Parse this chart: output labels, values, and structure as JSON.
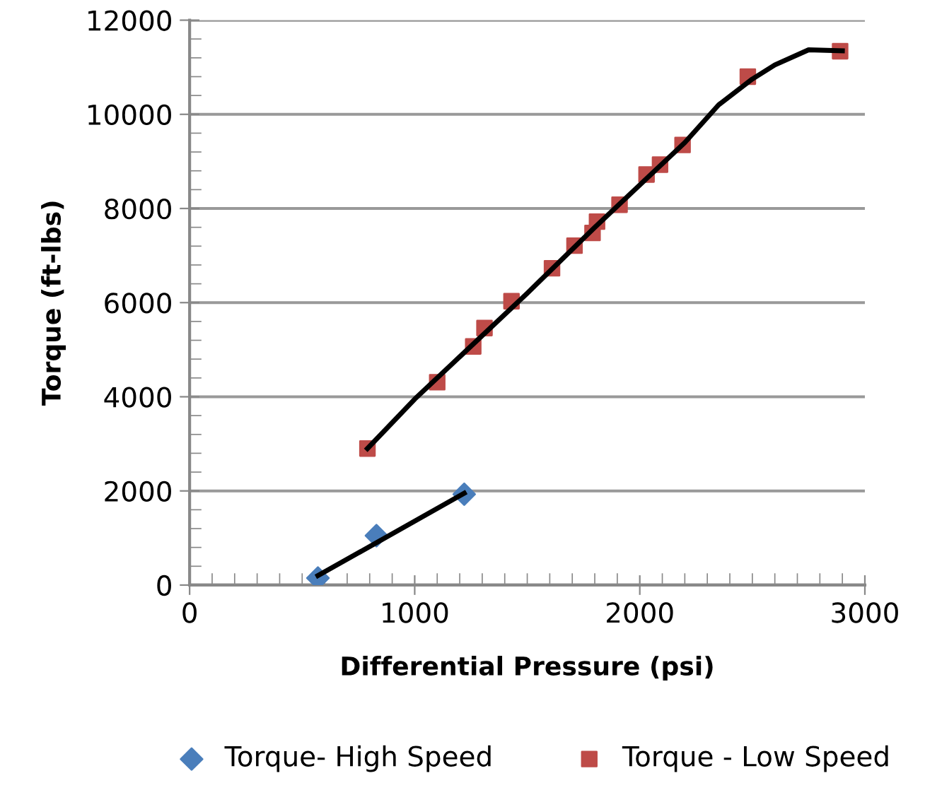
{
  "chart_data": {
    "type": "scatter",
    "xlabel": "Differential Pressure (psi)",
    "ylabel": "Torque (ft-lbs)",
    "xlim": [
      0,
      3000
    ],
    "xticks": [
      0,
      1000,
      2000,
      3000
    ],
    "ylim": [
      0,
      12000
    ],
    "yticks": [
      0,
      2000,
      4000,
      6000,
      8000,
      10000,
      12000
    ],
    "grid": "y",
    "legend": "bottom",
    "series": [
      {
        "name": "Torque- High Speed",
        "color": "#4a7ebb",
        "marker": "diamond",
        "x": [
          570,
          830,
          1220
        ],
        "values": [
          150,
          1050,
          1930
        ]
      },
      {
        "name": "Torque - Low Speed",
        "color": "#be4b48",
        "marker": "square",
        "x": [
          790,
          1100,
          1260,
          1310,
          1430,
          1610,
          1710,
          1790,
          1810,
          1910,
          2030,
          2090,
          2190,
          2480,
          2890
        ],
        "values": [
          2900,
          4310,
          5070,
          5460,
          6030,
          6730,
          7210,
          7480,
          7720,
          8080,
          8720,
          8930,
          9350,
          10800,
          11340
        ]
      },
      {
        "type": "line",
        "color": "#000000",
        "marker": "none",
        "x": [
          570,
          1220
        ],
        "values": [
          200,
          1950
        ]
      },
      {
        "type": "line",
        "color": "#000000",
        "marker": "none",
        "x": [
          790,
          1000,
          1200,
          1500,
          1800,
          2000,
          2200,
          2350,
          2500,
          2600,
          2750,
          2900
        ],
        "values": [
          2900,
          3950,
          4850,
          6200,
          7600,
          8500,
          9400,
          10200,
          10750,
          11050,
          11370,
          11350
        ]
      }
    ]
  }
}
